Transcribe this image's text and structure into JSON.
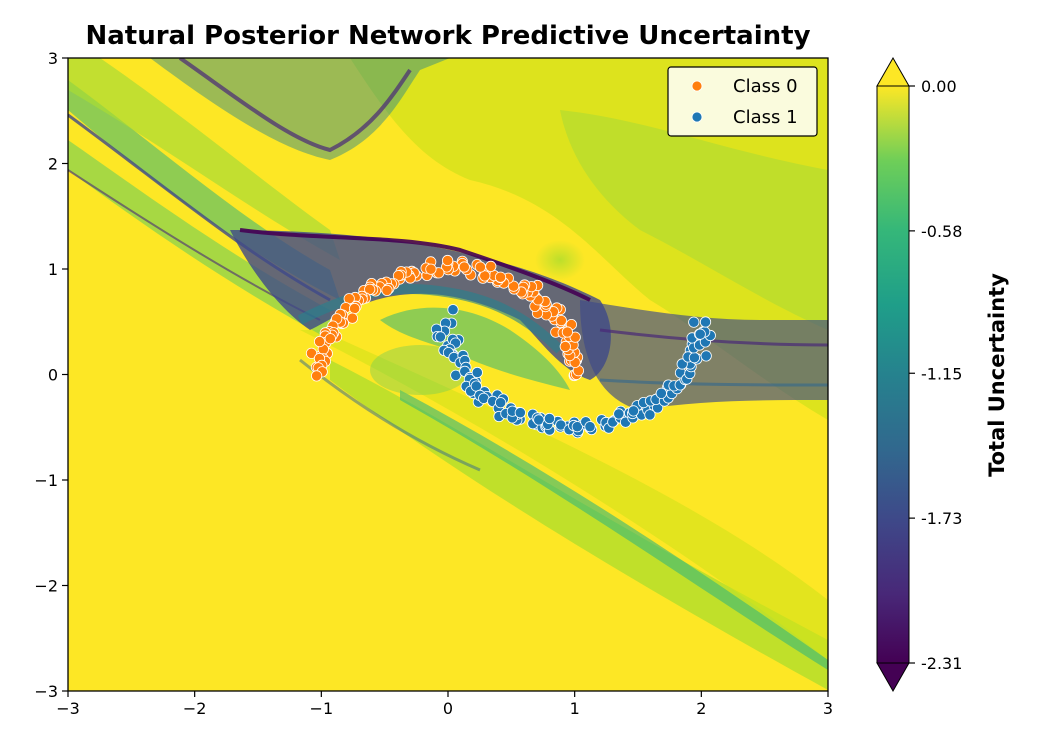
{
  "chart_data": {
    "type": "scatter",
    "title": "Natural Posterior Network Predictive Uncertainty",
    "xlabel": "",
    "ylabel": "",
    "xlim": [
      -3,
      3
    ],
    "ylim": [
      -3,
      3
    ],
    "x_ticks": [
      "−3",
      "−2",
      "−1",
      "0",
      "1",
      "2",
      "3"
    ],
    "y_ticks": [
      "−3",
      "−2",
      "−1",
      "0",
      "1",
      "2",
      "3"
    ],
    "legend_position": "top-right",
    "background": {
      "type": "contourf",
      "colormap": "viridis",
      "description_values": "Total uncertainty over the input plane, low (purple) near decision boundaries, high (yellow) elsewhere"
    },
    "colorbar": {
      "label": "Total Uncertainty",
      "ticks": [
        "0.00",
        "-0.58",
        "-1.15",
        "-1.73",
        "-2.31"
      ],
      "range": [
        -2.31,
        0.0
      ],
      "extend": "both"
    },
    "series": [
      {
        "name": "Class 0",
        "color": "#ff7f0e",
        "shape": "half-moon-upper",
        "center": [
          0,
          0
        ],
        "radius": 1.0,
        "n_points": 150
      },
      {
        "name": "Class 1",
        "color": "#1f77b4",
        "shape": "half-moon-lower",
        "center": [
          1,
          0.5
        ],
        "radius": 1.0,
        "n_points": 150
      }
    ]
  }
}
